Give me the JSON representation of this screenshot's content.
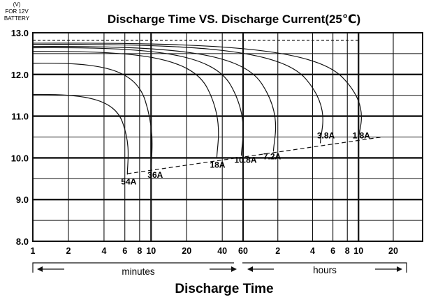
{
  "chart_data": {
    "type": "line",
    "title": "Discharge Time VS. Discharge Current(25℃)",
    "ylabel_lines": [
      "(V)",
      "FOR 12V",
      "BATTERY"
    ],
    "xlabel": "Discharge Time",
    "ylim": [
      8.0,
      13.0
    ],
    "y_ticks": [
      "8.0",
      "9.0",
      "10.0",
      "11.0",
      "12.0",
      "13.0"
    ],
    "x_tick_labels": [
      "1",
      "2",
      "4",
      "6",
      "8",
      "10",
      "20",
      "40",
      "60",
      "2",
      "4",
      "6",
      "8",
      "10",
      "20"
    ],
    "x_scale": "log, time axis: 1 minute to 20 hours",
    "unit_minutes": "minutes",
    "unit_hours": "hours",
    "grid": true,
    "curve_shape_note": "each curve starts flat near its initial voltage and drops steeply at the end time",
    "series": [
      {
        "name": "54A",
        "start_v": 11.52,
        "end_v": 9.6,
        "end_time_min": 6.3
      },
      {
        "name": "36A",
        "start_v": 12.27,
        "end_v": 9.72,
        "end_time_min": 10
      },
      {
        "name": "18A",
        "start_v": 12.55,
        "end_v": 10.0,
        "end_time_min": 36
      },
      {
        "name": "10.8A",
        "start_v": 12.64,
        "end_v": 10.05,
        "end_time_min": 58
      },
      {
        "name": "7.2A",
        "start_v": 12.67,
        "end_v": 10.15,
        "end_time_min": 110
      },
      {
        "name": "3.8A",
        "start_v": 12.72,
        "end_v": 10.35,
        "end_time_min": 280
      },
      {
        "name": "1.8A",
        "start_v": 12.75,
        "end_v": 10.42,
        "end_time_min": 600
      }
    ],
    "end_voltage_line": {
      "style": "dashed",
      "from": {
        "time_min": 6.3,
        "v": 9.62
      },
      "to": {
        "time_min": 960,
        "v": 10.5
      }
    },
    "initial_voltage_line": {
      "style": "dashed",
      "v": 12.82
    }
  }
}
